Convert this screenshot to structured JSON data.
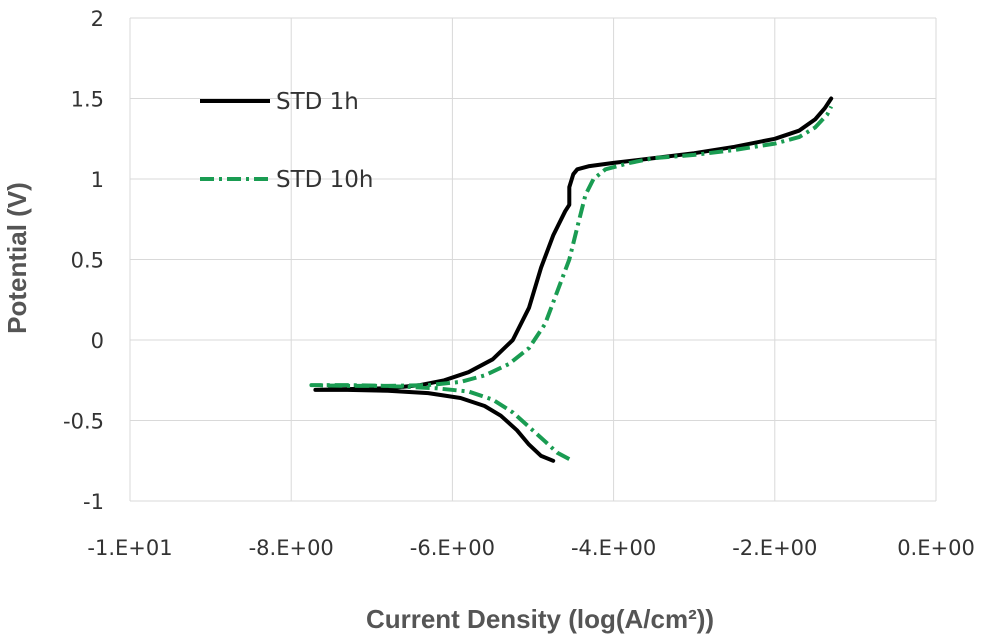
{
  "chart_data": {
    "type": "line",
    "title": "",
    "xlabel": "Current Density (log(A/cm²))",
    "ylabel": "Potential (V)",
    "xlim": [
      -10,
      0
    ],
    "ylim": [
      -1,
      2
    ],
    "x_ticks": [
      -10,
      -8,
      -6,
      -4,
      -2,
      0
    ],
    "x_tick_labels": [
      "-1.E+01",
      "-8.E+00",
      "-6.E+00",
      "-4.E+00",
      "-2.E+00",
      "0.E+00"
    ],
    "y_ticks": [
      -1,
      -0.5,
      0,
      0.5,
      1,
      1.5,
      2
    ],
    "y_tick_labels": [
      "-1",
      "-0.5",
      "0",
      "0.5",
      "1",
      "1.5",
      "2"
    ],
    "grid": true,
    "legend_position": "top-left",
    "series": [
      {
        "name": "STD 1h",
        "color": "#000000",
        "style": "solid",
        "points": [
          [
            -4.75,
            -0.75
          ],
          [
            -4.9,
            -0.72
          ],
          [
            -5.05,
            -0.65
          ],
          [
            -5.2,
            -0.56
          ],
          [
            -5.4,
            -0.47
          ],
          [
            -5.6,
            -0.41
          ],
          [
            -5.9,
            -0.36
          ],
          [
            -6.3,
            -0.33
          ],
          [
            -6.8,
            -0.315
          ],
          [
            -7.3,
            -0.31
          ],
          [
            -7.7,
            -0.31
          ],
          [
            -7.3,
            -0.305
          ],
          [
            -6.8,
            -0.3
          ],
          [
            -6.4,
            -0.28
          ],
          [
            -6.1,
            -0.25
          ],
          [
            -5.8,
            -0.2
          ],
          [
            -5.5,
            -0.12
          ],
          [
            -5.25,
            0.0
          ],
          [
            -5.05,
            0.2
          ],
          [
            -4.9,
            0.45
          ],
          [
            -4.75,
            0.65
          ],
          [
            -4.6,
            0.8
          ],
          [
            -4.55,
            0.84
          ],
          [
            -4.55,
            0.95
          ],
          [
            -4.5,
            1.03
          ],
          [
            -4.45,
            1.06
          ],
          [
            -4.3,
            1.08
          ],
          [
            -4.0,
            1.1
          ],
          [
            -3.5,
            1.13
          ],
          [
            -3.0,
            1.16
          ],
          [
            -2.5,
            1.2
          ],
          [
            -2.0,
            1.25
          ],
          [
            -1.7,
            1.3
          ],
          [
            -1.5,
            1.37
          ],
          [
            -1.38,
            1.44
          ],
          [
            -1.3,
            1.5
          ]
        ]
      },
      {
        "name": "STD 10h",
        "color": "#1a9c52",
        "style": "dash-dot",
        "points": [
          [
            -4.55,
            -0.74
          ],
          [
            -4.7,
            -0.7
          ],
          [
            -4.85,
            -0.63
          ],
          [
            -5.05,
            -0.54
          ],
          [
            -5.25,
            -0.45
          ],
          [
            -5.5,
            -0.37
          ],
          [
            -5.8,
            -0.32
          ],
          [
            -6.2,
            -0.3
          ],
          [
            -6.8,
            -0.285
          ],
          [
            -7.3,
            -0.28
          ],
          [
            -7.75,
            -0.28
          ],
          [
            -7.3,
            -0.285
          ],
          [
            -6.8,
            -0.285
          ],
          [
            -6.3,
            -0.28
          ],
          [
            -5.9,
            -0.26
          ],
          [
            -5.6,
            -0.22
          ],
          [
            -5.3,
            -0.15
          ],
          [
            -5.05,
            -0.05
          ],
          [
            -4.85,
            0.1
          ],
          [
            -4.7,
            0.3
          ],
          [
            -4.55,
            0.5
          ],
          [
            -4.45,
            0.7
          ],
          [
            -4.35,
            0.9
          ],
          [
            -4.25,
            1.0
          ],
          [
            -4.1,
            1.06
          ],
          [
            -3.8,
            1.1
          ],
          [
            -3.5,
            1.13
          ],
          [
            -3.0,
            1.15
          ],
          [
            -2.5,
            1.18
          ],
          [
            -2.0,
            1.22
          ],
          [
            -1.7,
            1.26
          ],
          [
            -1.5,
            1.32
          ],
          [
            -1.35,
            1.4
          ],
          [
            -1.3,
            1.45
          ]
        ]
      }
    ]
  }
}
